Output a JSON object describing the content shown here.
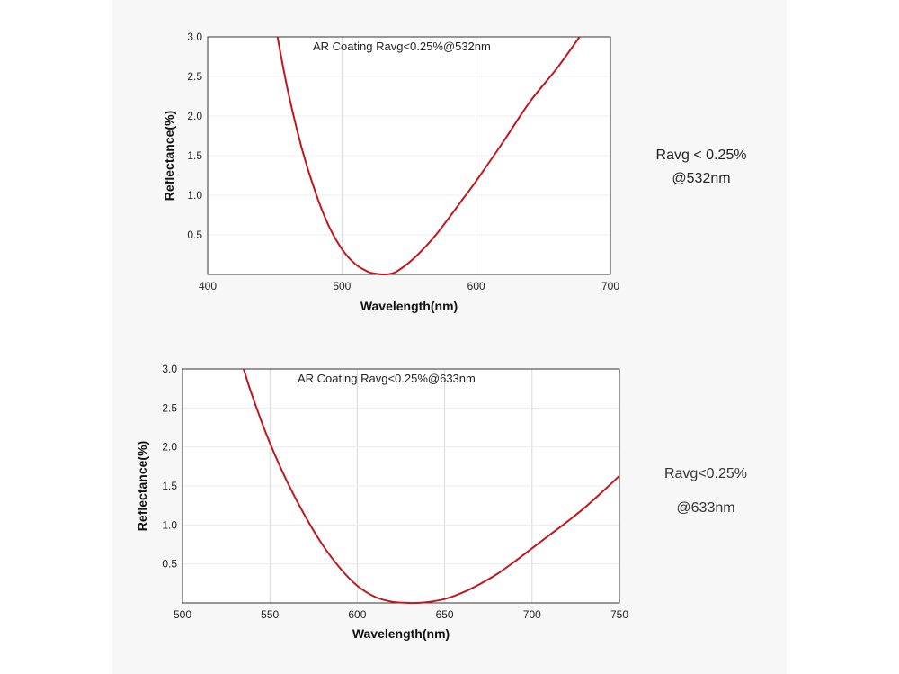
{
  "chart_data": [
    {
      "type": "line",
      "title": "AR Coating Ravg<0.25%@532nm",
      "xlabel": "Wavelength(nm)",
      "ylabel": "Reflectance(%)",
      "xlim": [
        400,
        700
      ],
      "ylim": [
        0,
        3.0
      ],
      "x_ticks": [
        "400",
        "500",
        "600",
        "700"
      ],
      "y_ticks": [
        "0.5",
        "1.0",
        "1.5",
        "2.0",
        "2.5",
        "3.0"
      ],
      "grid": "vertical",
      "line_color": "#c0161c",
      "series": [
        {
          "x": [
            452,
            460,
            470,
            480,
            490,
            500,
            510,
            520,
            525,
            530,
            532,
            535,
            540,
            550,
            560,
            570,
            580,
            590,
            600,
            620,
            640,
            660,
            677
          ],
          "y": [
            3.0,
            2.3,
            1.6,
            1.05,
            0.62,
            0.32,
            0.13,
            0.03,
            0.01,
            0.0,
            0.0,
            0.005,
            0.03,
            0.15,
            0.31,
            0.5,
            0.72,
            0.95,
            1.18,
            1.67,
            2.18,
            2.6,
            3.0
          ]
        }
      ]
    },
    {
      "type": "line",
      "title": "AR Coating Ravg<0.25%@633nm",
      "xlabel": "Wavelength(nm)",
      "ylabel": "Reflectance(%)",
      "xlim": [
        500,
        750
      ],
      "ylim": [
        0,
        3.0
      ],
      "x_ticks": [
        "500",
        "550",
        "600",
        "650",
        "700",
        "750"
      ],
      "y_ticks": [
        "0.5",
        "1.0",
        "1.5",
        "2.0",
        "2.5",
        "3.0"
      ],
      "grid": "vertical",
      "line_color": "#c0161c",
      "series": [
        {
          "x": [
            535,
            540,
            550,
            560,
            570,
            580,
            590,
            600,
            610,
            620,
            630,
            633,
            640,
            650,
            660,
            670,
            680,
            690,
            700,
            710,
            720,
            730,
            740,
            750
          ],
          "y": [
            3.0,
            2.65,
            2.05,
            1.55,
            1.12,
            0.75,
            0.45,
            0.22,
            0.08,
            0.015,
            0.0,
            0.0,
            0.01,
            0.05,
            0.13,
            0.24,
            0.37,
            0.53,
            0.7,
            0.87,
            1.04,
            1.22,
            1.42,
            1.63
          ]
        }
      ]
    }
  ],
  "notes": [
    {
      "line1": "Ravg < 0.25%",
      "line2": "@532nm"
    },
    {
      "line1": "Ravg<0.25%",
      "line2": "@633nm"
    }
  ]
}
